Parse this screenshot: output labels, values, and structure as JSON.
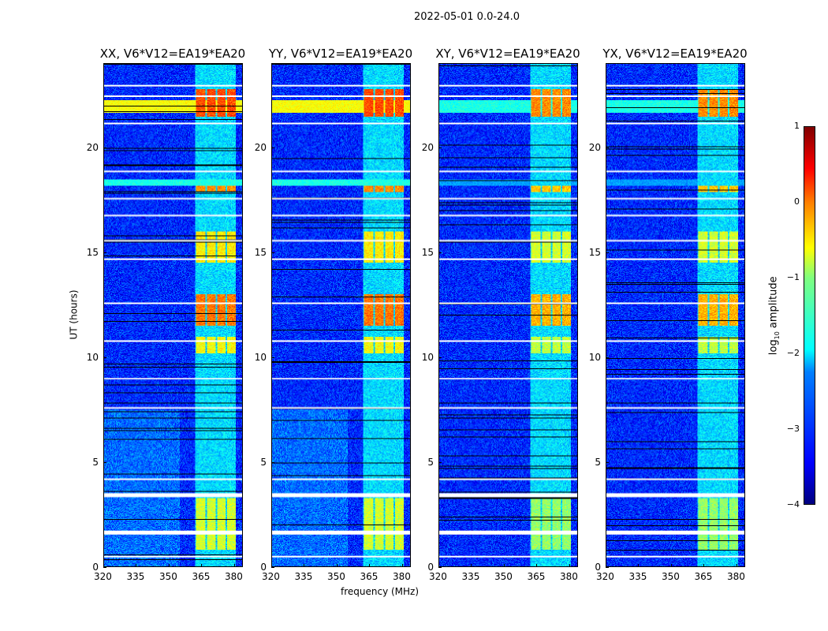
{
  "chart_data": {
    "type": "heatmap",
    "title": "2022-05-01 0.0-24.0",
    "xlabel": "frequency (MHz)",
    "ylabel": "UT (hours)",
    "xlim": [
      320,
      384
    ],
    "ylim": [
      0,
      24
    ],
    "xticks": [
      "320",
      "335",
      "350",
      "365",
      "380"
    ],
    "yticks": [
      "0",
      "5",
      "10",
      "15",
      "20"
    ],
    "panels": [
      {
        "title": "XX, V6*V12=EA19*EA20",
        "pol": "XX"
      },
      {
        "title": "YY, V6*V12=EA19*EA20",
        "pol": "YY"
      },
      {
        "title": "XY, V6*V12=EA19*EA20",
        "pol": "XY"
      },
      {
        "title": "YX, V6*V12=EA19*EA20",
        "pol": "YX"
      }
    ],
    "colorbar": {
      "label": "log10 amplitude",
      "label_main": "log",
      "label_sub": "10",
      "label_tail": " amplitude",
      "range": [
        -4,
        1
      ],
      "ticks": [
        "1",
        "0",
        "−1",
        "−2",
        "−3",
        "−4"
      ],
      "colormap": "jet"
    },
    "rfi_band_mhz": [
      362,
      381
    ],
    "background_level": -3.2,
    "rfi_events": [
      {
        "t0": 0.8,
        "t1": 3.3,
        "level": -1.1
      },
      {
        "t0": 10.2,
        "t1": 11.0,
        "level": -0.9
      },
      {
        "t0": 11.5,
        "t1": 13.0,
        "level": -0.2
      },
      {
        "t0": 14.5,
        "t1": 16.0,
        "level": -0.8
      },
      {
        "t0": 17.9,
        "t1": 18.2,
        "level": -0.3
      },
      {
        "t0": 21.5,
        "t1": 22.8,
        "level": 0.0
      }
    ],
    "broadband_events": [
      {
        "t0": 21.7,
        "t1": 22.3,
        "level_parallel": -0.9,
        "level_cross": -2.0
      },
      {
        "t0": 18.2,
        "t1": 18.5,
        "level_parallel": -2.0,
        "level_cross": -2.6
      }
    ],
    "flagged_hours": [
      0.5,
      1.7,
      3.5,
      4.2,
      7.6,
      9.0,
      10.8,
      12.6,
      14.7,
      15.6,
      16.8,
      17.6,
      18.9,
      21.2,
      22.5,
      23.0
    ]
  }
}
